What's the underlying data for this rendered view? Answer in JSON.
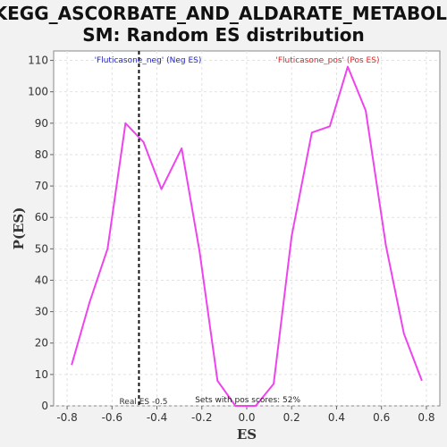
{
  "chart_data": {
    "type": "line",
    "title_line1": "KEGG_ASCORBATE_AND_ALDARATE_METABOLI",
    "title_line2": "SM: Random ES distribution",
    "xlabel": "ES",
    "ylabel": "P(ES)",
    "xlim": [
      -0.86,
      0.86
    ],
    "ylim": [
      0,
      113
    ],
    "xticks": [
      -0.8,
      -0.6,
      -0.4,
      -0.2,
      0.0,
      0.2,
      0.4,
      0.6,
      0.8
    ],
    "xtick_labels": [
      "-0.8",
      "-0.6",
      "-0.4",
      "-0.2",
      "0.0",
      "0.2",
      "0.4",
      "0.6",
      "0.8"
    ],
    "yticks": [
      0,
      10,
      20,
      30,
      40,
      50,
      60,
      70,
      80,
      90,
      100,
      110
    ],
    "ytick_labels": [
      "0",
      "10",
      "20",
      "30",
      "40",
      "50",
      "60",
      "70",
      "80",
      "90",
      "100",
      "110"
    ],
    "grid": true,
    "series": [
      {
        "color": "#ee44ee",
        "x": [
          -0.78,
          -0.7,
          -0.62,
          -0.54,
          -0.46,
          -0.38,
          -0.29,
          -0.21,
          -0.13,
          -0.05,
          0.04,
          0.12,
          0.2,
          0.29,
          0.37,
          0.45,
          0.53,
          0.62,
          0.7,
          0.78
        ],
        "y": [
          13,
          33,
          50,
          90,
          84,
          69,
          82,
          49,
          8,
          0,
          0,
          7,
          54,
          87,
          89,
          108,
          94,
          51,
          23,
          8
        ]
      }
    ],
    "real_es_line": {
      "x": -0.48,
      "color": "#111111",
      "style": "dashed"
    },
    "annotations": {
      "neg_label": "'Fluticasone_neg' (Neg ES)",
      "neg_color": "#2222cc",
      "pos_label": "'Fluticasone_pos' (Pos ES)",
      "pos_color": "#dd2222",
      "real_es": "Real ES -0.5",
      "sets_pos": "Sets with pos scores: 52%"
    }
  }
}
